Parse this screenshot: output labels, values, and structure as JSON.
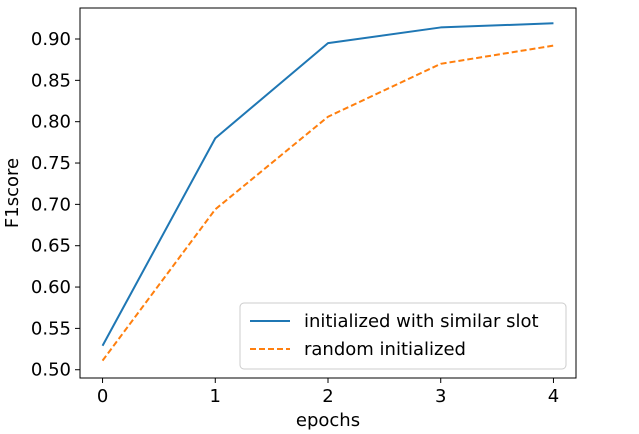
{
  "chart_data": {
    "type": "line",
    "title": "",
    "xlabel": "epochs",
    "ylabel": "F1score",
    "x": [
      0,
      1,
      2,
      3,
      4
    ],
    "xticks": [
      0,
      1,
      2,
      3,
      4
    ],
    "xtick_labels": [
      "0",
      "1",
      "2",
      "3",
      "4"
    ],
    "xlim": [
      -0.2,
      4.2
    ],
    "yticks": [
      0.5,
      0.55,
      0.6,
      0.65,
      0.7,
      0.75,
      0.8,
      0.85,
      0.9
    ],
    "ytick_labels": [
      "0.50",
      "0.55",
      "0.60",
      "0.65",
      "0.70",
      "0.75",
      "0.80",
      "0.85",
      "0.90"
    ],
    "ylim": [
      0.49,
      0.9375
    ],
    "grid": false,
    "legend_position": "lower-right",
    "series": [
      {
        "name": "initialized with similar slot",
        "values": [
          0.529,
          0.78,
          0.895,
          0.914,
          0.919
        ],
        "color": "#1f77b4",
        "style": "solid"
      },
      {
        "name": "random initialized",
        "values": [
          0.511,
          0.694,
          0.806,
          0.87,
          0.892
        ],
        "color": "#ff7f0e",
        "style": "dashed"
      }
    ]
  }
}
